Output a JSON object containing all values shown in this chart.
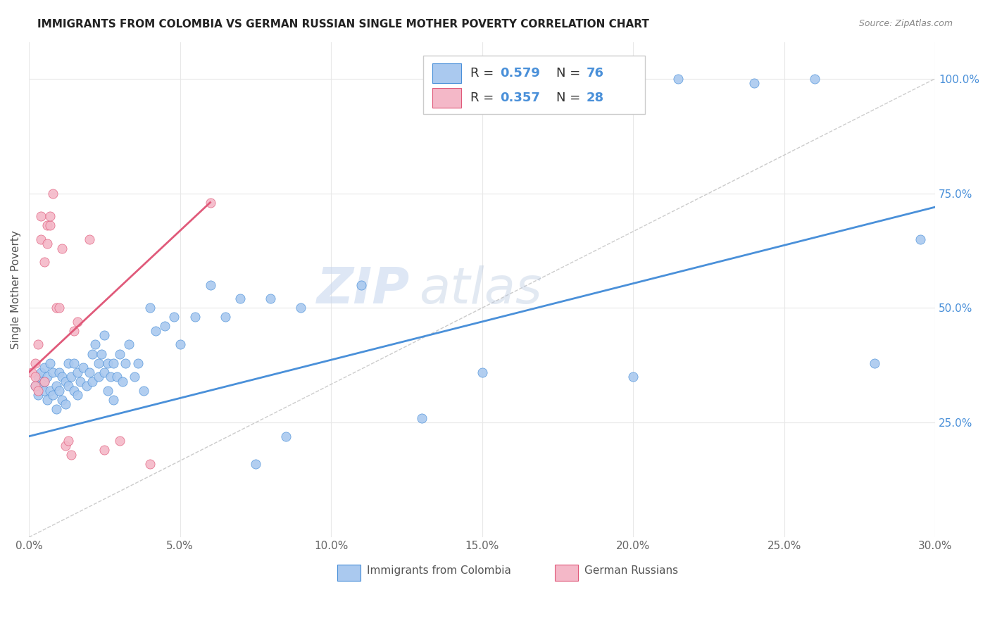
{
  "title": "IMMIGRANTS FROM COLOMBIA VS GERMAN RUSSIAN SINGLE MOTHER POVERTY CORRELATION CHART",
  "source": "Source: ZipAtlas.com",
  "ylabel": "Single Mother Poverty",
  "xlim": [
    0.0,
    0.3
  ],
  "ylim": [
    0.0,
    1.08
  ],
  "xtick_labels": [
    "0.0%",
    "5.0%",
    "10.0%",
    "15.0%",
    "20.0%",
    "25.0%",
    "30.0%"
  ],
  "xtick_vals": [
    0.0,
    0.05,
    0.1,
    0.15,
    0.2,
    0.25,
    0.3
  ],
  "ytick_labels": [
    "25.0%",
    "50.0%",
    "75.0%",
    "100.0%"
  ],
  "ytick_vals": [
    0.25,
    0.5,
    0.75,
    1.0
  ],
  "legend_labels": [
    "Immigrants from Colombia",
    "German Russians"
  ],
  "legend_R_blue": "0.579",
  "legend_N_blue": "76",
  "legend_R_pink": "0.357",
  "legend_N_pink": "28",
  "color_blue": "#aac9ef",
  "color_pink": "#f4b8c8",
  "color_blue_line": "#4a90d9",
  "color_pink_line": "#e05a7a",
  "color_diag": "#cccccc",
  "watermark_zip": "ZIP",
  "watermark_atlas": "atlas",
  "blue_scatter_x": [
    0.002,
    0.003,
    0.003,
    0.004,
    0.004,
    0.005,
    0.005,
    0.005,
    0.006,
    0.006,
    0.007,
    0.007,
    0.008,
    0.008,
    0.009,
    0.009,
    0.01,
    0.01,
    0.011,
    0.011,
    0.012,
    0.012,
    0.013,
    0.013,
    0.014,
    0.015,
    0.015,
    0.016,
    0.016,
    0.017,
    0.018,
    0.019,
    0.02,
    0.021,
    0.021,
    0.022,
    0.023,
    0.023,
    0.024,
    0.025,
    0.025,
    0.026,
    0.026,
    0.027,
    0.028,
    0.028,
    0.029,
    0.03,
    0.031,
    0.032,
    0.033,
    0.035,
    0.036,
    0.038,
    0.04,
    0.042,
    0.045,
    0.048,
    0.05,
    0.055,
    0.06,
    0.065,
    0.07,
    0.075,
    0.08,
    0.085,
    0.09,
    0.11,
    0.13,
    0.15,
    0.2,
    0.215,
    0.24,
    0.26,
    0.28,
    0.295
  ],
  "blue_scatter_y": [
    0.33,
    0.31,
    0.35,
    0.33,
    0.36,
    0.32,
    0.34,
    0.37,
    0.3,
    0.35,
    0.32,
    0.38,
    0.31,
    0.36,
    0.33,
    0.28,
    0.32,
    0.36,
    0.3,
    0.35,
    0.34,
    0.29,
    0.38,
    0.33,
    0.35,
    0.32,
    0.38,
    0.36,
    0.31,
    0.34,
    0.37,
    0.33,
    0.36,
    0.4,
    0.34,
    0.42,
    0.38,
    0.35,
    0.4,
    0.36,
    0.44,
    0.38,
    0.32,
    0.35,
    0.38,
    0.3,
    0.35,
    0.4,
    0.34,
    0.38,
    0.42,
    0.35,
    0.38,
    0.32,
    0.5,
    0.45,
    0.46,
    0.48,
    0.42,
    0.48,
    0.55,
    0.48,
    0.52,
    0.16,
    0.52,
    0.22,
    0.5,
    0.55,
    0.26,
    0.36,
    0.35,
    1.0,
    0.99,
    1.0,
    0.38,
    0.65
  ],
  "pink_scatter_x": [
    0.001,
    0.002,
    0.002,
    0.002,
    0.003,
    0.003,
    0.004,
    0.004,
    0.005,
    0.005,
    0.006,
    0.006,
    0.007,
    0.007,
    0.008,
    0.009,
    0.01,
    0.011,
    0.012,
    0.013,
    0.014,
    0.015,
    0.016,
    0.02,
    0.025,
    0.03,
    0.04,
    0.06
  ],
  "pink_scatter_y": [
    0.36,
    0.33,
    0.35,
    0.38,
    0.32,
    0.42,
    0.65,
    0.7,
    0.34,
    0.6,
    0.64,
    0.68,
    0.68,
    0.7,
    0.75,
    0.5,
    0.5,
    0.63,
    0.2,
    0.21,
    0.18,
    0.45,
    0.47,
    0.65,
    0.19,
    0.21,
    0.16,
    0.73
  ],
  "blue_line_x": [
    0.0,
    0.3
  ],
  "blue_line_y": [
    0.22,
    0.72
  ],
  "pink_line_x": [
    0.0,
    0.06
  ],
  "pink_line_y": [
    0.36,
    0.73
  ],
  "diag_line_x": [
    0.0,
    0.3
  ],
  "diag_line_y": [
    0.0,
    1.0
  ],
  "background_color": "#ffffff",
  "grid_color": "#e8e8e8"
}
